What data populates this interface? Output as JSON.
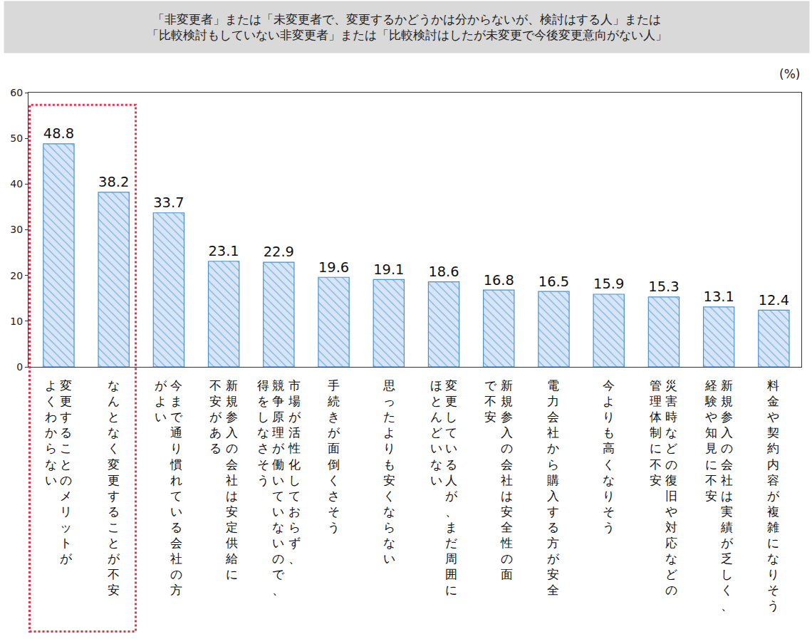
{
  "chart_data": {
    "type": "bar",
    "title": "「非変更者」または「未変更者で、変更するかどうかは分からないが、検討はする人」または\n「比較検討もしていない非変更者」または「比較検討はしたが未変更で今後変更意向がない人」",
    "ylabel": "(%)",
    "categories": [
      "変更することのメリットが\nよくわからない",
      "なんとなく変更することが不安",
      "今まで通り慣れている会社の方\nがよい",
      "新規参入の会社は安定供給に\n不安がある",
      "市場が活性化しておらず、\n競争原理が働いていないので、\n得をしなさそう",
      "手続きが面倒くさそう",
      "思ったよりも安くならない",
      "変更している人が、まだ周囲に\nほとんどいない",
      "新規参入の会社は安全性の面\nで不安",
      "電力会社から購入する方が安全",
      "今よりも高くなりそう",
      "災害時などの復旧や対応などの\n管理体制に不安",
      "新規参入の会社は実績が乏しく、\n経験や知見に不安",
      "料金や契約内容が複雑になりそう"
    ],
    "values": [
      48.8,
      38.2,
      33.7,
      23.1,
      22.9,
      19.6,
      19.1,
      18.6,
      16.8,
      16.5,
      15.9,
      15.3,
      13.1,
      12.4
    ],
    "color": "#d6e6f6",
    "ylim": [
      0,
      60
    ],
    "yticks": [
      0,
      10,
      20,
      30,
      40,
      50,
      60
    ],
    "grid": false,
    "data_labels": true
  }
}
